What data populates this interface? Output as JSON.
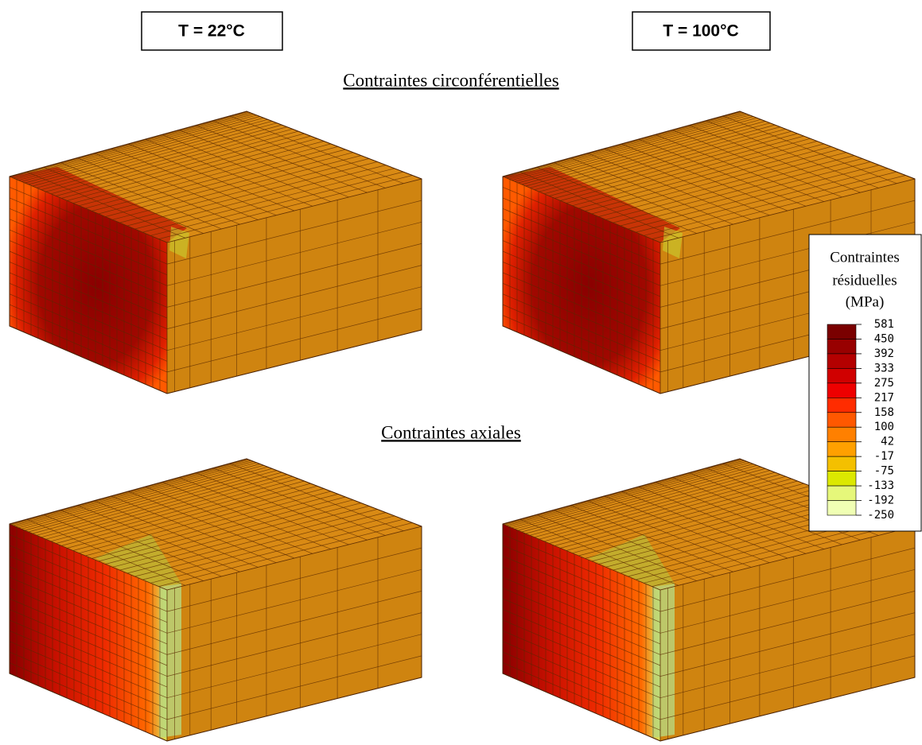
{
  "panels": {
    "columns": [
      "T = 22°C",
      "T = 100°C"
    ],
    "rows": [
      "Contraintes circonférentielles",
      "Contraintes axiales"
    ]
  },
  "legend": {
    "title": [
      "Contraintes",
      "résiduelles",
      "(MPa)"
    ],
    "levels": [
      581,
      450,
      392,
      333,
      275,
      217,
      158,
      100,
      42,
      -17,
      -75,
      -133,
      -192,
      -250
    ],
    "colors": [
      "#7a0000",
      "#980000",
      "#b40000",
      "#d00000",
      "#ee0000",
      "#ff2c00",
      "#ff5800",
      "#ff8000",
      "#ffa000",
      "#f4c000",
      "#dce800",
      "#e6f77a",
      "#f0ffb4"
    ]
  }
}
